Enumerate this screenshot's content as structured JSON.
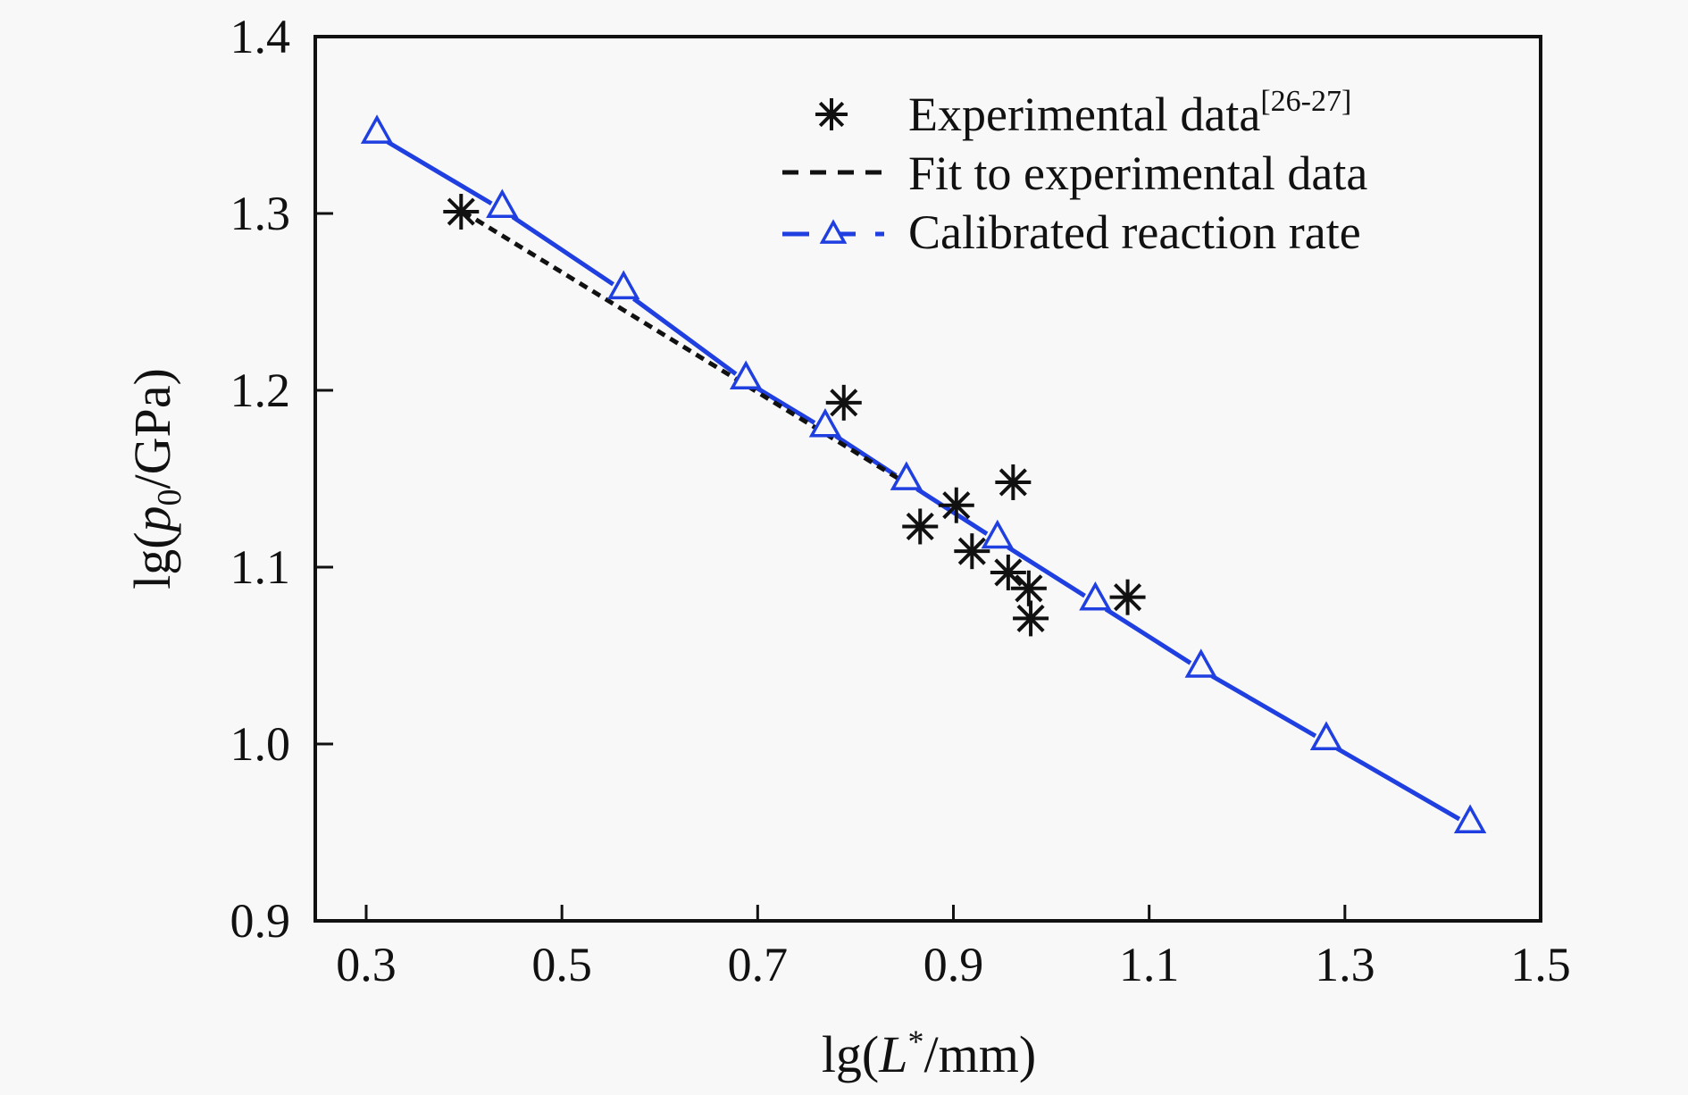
{
  "chart_data": {
    "type": "scatter",
    "title": "",
    "xlabel": {
      "prefix": "lg(",
      "italic": "L",
      "sup": "*",
      "suffix": "/mm)"
    },
    "ylabel": {
      "prefix": "lg(",
      "italic": "p",
      "sub": "0",
      "suffix": "/GPa)"
    },
    "xlim": [
      0.25,
      1.5
    ],
    "ylim": [
      0.9,
      1.4
    ],
    "xticks": [
      0.3,
      0.5,
      0.7,
      0.9,
      1.1,
      1.3,
      1.5
    ],
    "xtick_labels": [
      "0.3",
      "0.5",
      "0.7",
      "0.9",
      "1.1",
      "1.3",
      "1.5"
    ],
    "yticks": [
      0.9,
      1.0,
      1.1,
      1.2,
      1.3,
      1.4
    ],
    "ytick_labels": [
      "0.9",
      "1.0",
      "1.1",
      "1.2",
      "1.3",
      "1.4"
    ],
    "grid": false,
    "legend_position": "top-right",
    "series": [
      {
        "name": "Experimental data",
        "legend_sup": "[26-27]",
        "marker": "asterisk",
        "color": "#111111",
        "x": [
          0.397,
          0.788,
          0.866,
          0.903,
          0.919,
          0.961,
          0.956,
          0.977,
          0.979,
          1.078
        ],
        "y": [
          1.301,
          1.193,
          1.123,
          1.135,
          1.109,
          1.148,
          1.097,
          1.088,
          1.071,
          1.083
        ]
      },
      {
        "name": "Fit to experimental data",
        "marker": "none",
        "line": "dashed",
        "color": "#111111",
        "x": [
          0.399,
          0.85
        ],
        "y": [
          1.301,
          1.148
        ]
      },
      {
        "name": "Calibrated reaction rate",
        "marker": "triangle",
        "line": "solid",
        "color": "#1f3fe0",
        "x": [
          0.311,
          0.439,
          0.563,
          0.688,
          0.769,
          0.852,
          0.945,
          1.045,
          1.153,
          1.281,
          1.428
        ],
        "y": [
          1.344,
          1.302,
          1.256,
          1.205,
          1.178,
          1.148,
          1.115,
          1.08,
          1.042,
          1.001,
          0.954
        ]
      }
    ]
  }
}
